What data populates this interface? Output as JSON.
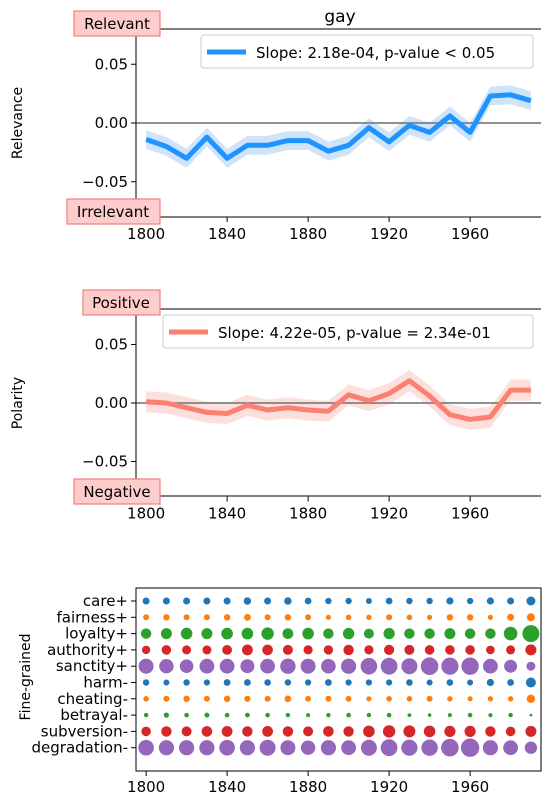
{
  "chart_data": [
    {
      "type": "line",
      "title": "gay",
      "ylabel": "Relevance",
      "top_tag": "Relevant",
      "bottom_tag": "Irrelevant",
      "ylim": [
        -0.08,
        0.08
      ],
      "xlim": [
        1795,
        1995
      ],
      "xticks": [
        "1800",
        "1840",
        "1880",
        "1920",
        "1960"
      ],
      "yticks": [
        "0.05",
        "0.00",
        "−0.05"
      ],
      "ytick_values": [
        0.05,
        0.0,
        -0.05
      ],
      "legend": "Slope: 2.18e-04, p-value < 0.05",
      "color": "#1f93ff",
      "band_color": "#cfe4fa",
      "x": [
        1800,
        1810,
        1820,
        1830,
        1840,
        1850,
        1860,
        1870,
        1880,
        1890,
        1900,
        1910,
        1920,
        1930,
        1940,
        1950,
        1960,
        1970,
        1980,
        1990
      ],
      "y": [
        -0.014,
        -0.02,
        -0.03,
        -0.012,
        -0.03,
        -0.019,
        -0.019,
        -0.015,
        -0.015,
        -0.024,
        -0.019,
        -0.004,
        -0.016,
        -0.002,
        -0.008,
        0.006,
        -0.008,
        0.023,
        0.024,
        0.019
      ],
      "band": 0.008
    },
    {
      "type": "line",
      "ylabel": "Polarity",
      "top_tag": "Positive",
      "bottom_tag": "Negative",
      "ylim": [
        -0.08,
        0.08
      ],
      "xlim": [
        1795,
        1995
      ],
      "xticks": [
        "1800",
        "1840",
        "1880",
        "1920",
        "1960"
      ],
      "yticks": [
        "0.05",
        "0.00",
        "−0.05"
      ],
      "ytick_values": [
        0.05,
        0.0,
        -0.05
      ],
      "legend": "Slope: 4.22e-05, p-value = 2.34e-01",
      "color": "#fa8072",
      "band_color": "#fde0dc",
      "x": [
        1800,
        1810,
        1820,
        1830,
        1840,
        1850,
        1860,
        1870,
        1880,
        1890,
        1900,
        1910,
        1920,
        1930,
        1940,
        1950,
        1960,
        1970,
        1980,
        1990
      ],
      "y": [
        0.001,
        0.0,
        -0.004,
        -0.008,
        -0.009,
        -0.002,
        -0.006,
        -0.004,
        -0.006,
        -0.007,
        0.007,
        0.002,
        0.008,
        0.019,
        0.006,
        -0.01,
        -0.014,
        -0.012,
        0.011,
        0.011
      ],
      "band": 0.009
    },
    {
      "type": "scatter",
      "ylabel": "Fine-grained",
      "xlim": [
        1795,
        1995
      ],
      "xticks": [
        "1800",
        "1840",
        "1880",
        "1920",
        "1960"
      ],
      "categories": [
        "care+",
        "fairness+",
        "loyalty+",
        "authority+",
        "sanctity+",
        "harm-",
        "cheating-",
        "betrayal-",
        "subversion-",
        "degradation-"
      ],
      "colors": [
        "#1f77b4",
        "#ff7f0e",
        "#2ca02c",
        "#d62728",
        "#9467bd",
        "#1f77b4",
        "#ff7f0e",
        "#2ca02c",
        "#d62728",
        "#9467bd"
      ],
      "x": [
        1800,
        1810,
        1820,
        1830,
        1840,
        1850,
        1860,
        1870,
        1880,
        1890,
        1900,
        1910,
        1920,
        1930,
        1940,
        1950,
        1960,
        1970,
        1980,
        1990
      ],
      "sizes": [
        [
          3.5,
          3.5,
          3.5,
          3.5,
          3.5,
          3.7,
          3.5,
          3.7,
          3.4,
          3.2,
          3.2,
          3.0,
          3.4,
          3.2,
          3.2,
          3.6,
          3.2,
          3.6,
          3.5,
          4.5
        ],
        [
          3.0,
          3.2,
          3.0,
          3.0,
          3.2,
          3.4,
          3.0,
          3.2,
          3.0,
          2.6,
          2.8,
          2.7,
          3.0,
          2.8,
          2.6,
          3.2,
          3.2,
          2.6,
          3.5,
          4.0
        ],
        [
          5.2,
          5.5,
          5.8,
          5.5,
          5.8,
          5.8,
          6.2,
          5.4,
          5.8,
          5.2,
          5.7,
          5.0,
          5.6,
          5.2,
          5.2,
          5.5,
          5.2,
          5.2,
          6.8,
          8.5
        ],
        [
          4.2,
          4.8,
          4.5,
          4.5,
          4.9,
          5.4,
          5.3,
          5.0,
          4.6,
          4.7,
          5.2,
          4.6,
          5.1,
          5.0,
          4.8,
          4.8,
          4.8,
          4.3,
          4.5,
          5.5
        ],
        [
          7.5,
          7.2,
          6.8,
          7.4,
          7.4,
          7.0,
          7.4,
          7.7,
          7.5,
          7.3,
          7.6,
          8.3,
          8.4,
          8.0,
          8.8,
          8.6,
          8.7,
          7.4,
          6.5,
          4.5
        ],
        [
          3.2,
          3.0,
          3.2,
          3.1,
          3.4,
          3.4,
          3.3,
          3.2,
          3.1,
          3.4,
          3.1,
          3.1,
          3.1,
          3.3,
          3.0,
          3.3,
          3.0,
          3.6,
          3.4,
          5.0
        ],
        [
          2.8,
          3.0,
          3.2,
          3.0,
          3.2,
          3.1,
          3.0,
          3.3,
          2.9,
          3.0,
          2.9,
          2.6,
          2.8,
          2.8,
          3.0,
          2.7,
          2.5,
          2.7,
          2.7,
          4.2
        ],
        [
          2.2,
          2.6,
          2.3,
          2.5,
          2.3,
          2.4,
          2.3,
          2.2,
          2.0,
          2.2,
          2.3,
          2.2,
          2.3,
          1.9,
          1.8,
          2.0,
          2.3,
          2.0,
          2.2,
          1.4
        ],
        [
          4.8,
          5.2,
          5.0,
          5.3,
          5.4,
          5.2,
          5.4,
          5.2,
          5.0,
          5.3,
          5.2,
          5.8,
          6.2,
          6.0,
          5.8,
          5.6,
          5.6,
          5.2,
          4.8,
          5.5
        ],
        [
          7.8,
          7.6,
          7.6,
          7.6,
          7.8,
          7.6,
          8.0,
          7.5,
          7.2,
          7.6,
          7.4,
          8.0,
          8.4,
          8.1,
          8.2,
          8.8,
          9.2,
          7.6,
          7.4,
          6.2
        ]
      ]
    }
  ]
}
